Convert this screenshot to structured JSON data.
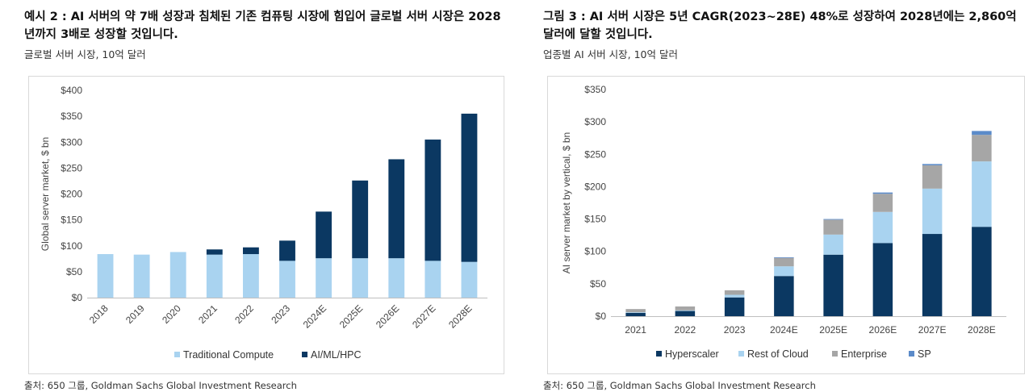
{
  "left": {
    "heading": "예시 2 : AI 서버의 약 7배 성장과 침체된 기존 컴퓨팅 시장에 힘입어 글로벌 서버 시장은 2028년까지 3배로 성장할 것입니다.",
    "subtitle": "글로벌 서버 시장, 10억 달러",
    "source": "출처: 650 그룹, Goldman Sachs Global Investment Research"
  },
  "right": {
    "heading": "그림 3 : AI 서버 시장은 5년 CAGR(2023~28E) 48%로 성장하여 2028년에는 2,860억 달러에 달할 것입니다.",
    "subtitle": "업종별 AI 서버 시장, 10억 달러",
    "source": "출처: 650 그룹, Goldman Sachs Global Investment Research"
  },
  "chart_data": [
    {
      "type": "bar",
      "stacked": true,
      "title": "",
      "ylabel": "Global server market, $ bn",
      "xlabel": "",
      "ylim": [
        0,
        400
      ],
      "yticks": [
        0,
        50,
        100,
        150,
        200,
        250,
        300,
        350,
        400
      ],
      "ytick_labels": [
        "$0",
        "$50",
        "$100",
        "$150",
        "$200",
        "$250",
        "$300",
        "$350",
        "$400"
      ],
      "categories": [
        "2018",
        "2019",
        "2020",
        "2021",
        "2022",
        "2023",
        "2024E",
        "2025E",
        "2026E",
        "2027E",
        "2028E"
      ],
      "series": [
        {
          "name": "Traditional Compute",
          "color": "#a9d3f0",
          "values": [
            84,
            83,
            88,
            83,
            84,
            71,
            76,
            76,
            76,
            71,
            69
          ]
        },
        {
          "name": "AI/ML/HPC",
          "color": "#0b3862",
          "values": [
            0,
            0,
            0,
            10,
            13,
            39,
            90,
            150,
            191,
            234,
            286
          ]
        }
      ],
      "legend_position": "bottom",
      "grid": false
    },
    {
      "type": "bar",
      "stacked": true,
      "title": "",
      "ylabel": "AI server market by vertical, $ bn",
      "xlabel": "",
      "ylim": [
        0,
        350
      ],
      "yticks": [
        0,
        50,
        100,
        150,
        200,
        250,
        300,
        350
      ],
      "ytick_labels": [
        "$0",
        "$50",
        "$100",
        "$150",
        "$200",
        "$250",
        "$300",
        "$350"
      ],
      "categories": [
        "2021",
        "2022",
        "2023",
        "2024E",
        "2025E",
        "2026E",
        "2027E",
        "2028E"
      ],
      "series": [
        {
          "name": "Hyperscaler",
          "color": "#0b3862",
          "values": [
            5,
            8,
            29,
            62,
            95,
            113,
            127,
            138
          ]
        },
        {
          "name": "Rest of Cloud",
          "color": "#a9d3f0",
          "values": [
            1,
            1,
            4,
            15,
            31,
            48,
            70,
            101
          ]
        },
        {
          "name": "Enterprise",
          "color": "#a6a6a6",
          "values": [
            5,
            6,
            7,
            13,
            23,
            28,
            36,
            41
          ]
        },
        {
          "name": "SP",
          "color": "#5b8bc9",
          "values": [
            0,
            0,
            0,
            1,
            1,
            2,
            2,
            6
          ]
        }
      ],
      "legend_position": "bottom",
      "grid": false
    }
  ]
}
